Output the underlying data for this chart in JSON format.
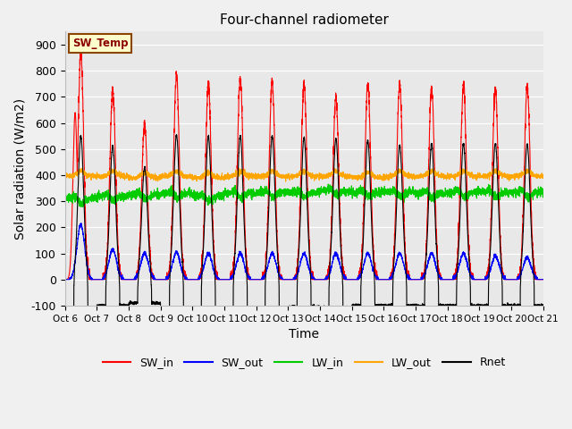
{
  "title": "Four-channel radiometer",
  "xlabel": "Time",
  "ylabel": "Solar radiation (W/m2)",
  "ylim": [
    -100,
    950
  ],
  "background_color": "#f0f0f0",
  "plot_bg_color": "#e8e8e8",
  "annotation_text": "SW_Temp",
  "annotation_bg": "#ffffcc",
  "annotation_border": "#8B4500",
  "xtick_labels": [
    "Oct 6",
    "Oct 7",
    "Oct 8",
    "Oct 9",
    "Oct 10",
    "Oct 11",
    "Oct 12",
    "Oct 13",
    "Oct 14",
    "Oct 15",
    "Oct 16",
    "Oct 17",
    "Oct 18",
    "Oct 19",
    "Oct 20",
    "Oct 21"
  ],
  "ytick_values": [
    -100,
    0,
    100,
    200,
    300,
    400,
    500,
    600,
    700,
    800,
    900
  ],
  "legend_entries": [
    {
      "label": "SW_in",
      "color": "#ff0000"
    },
    {
      "label": "SW_out",
      "color": "#0000ff"
    },
    {
      "label": "LW_in",
      "color": "#00cc00"
    },
    {
      "label": "LW_out",
      "color": "#ffa500"
    },
    {
      "label": "Rnet",
      "color": "#000000"
    }
  ],
  "n_days": 15,
  "sw_in_peak": [
    870,
    730,
    600,
    780,
    750,
    770,
    760,
    750,
    700,
    750,
    750,
    730,
    750,
    730,
    740
  ],
  "sw_out_peak": [
    210,
    115,
    100,
    105,
    100,
    100,
    100,
    100,
    100,
    100,
    100,
    100,
    100,
    90,
    85
  ],
  "lw_in_base": [
    310,
    320,
    325,
    330,
    320,
    330,
    335,
    335,
    340,
    335,
    335,
    330,
    335,
    335,
    335
  ],
  "lw_out_base": [
    395,
    395,
    390,
    395,
    390,
    395,
    395,
    395,
    395,
    390,
    395,
    395,
    395,
    395,
    395
  ],
  "rnet_peak": [
    550,
    510,
    430,
    555,
    550,
    550,
    550,
    545,
    540,
    530,
    515,
    520,
    520,
    520,
    520
  ],
  "rnet_night": [
    -115,
    -100,
    -90,
    -110,
    -110,
    -110,
    -110,
    -105,
    -110,
    -100,
    -100,
    -100,
    -100,
    -100,
    -100
  ]
}
